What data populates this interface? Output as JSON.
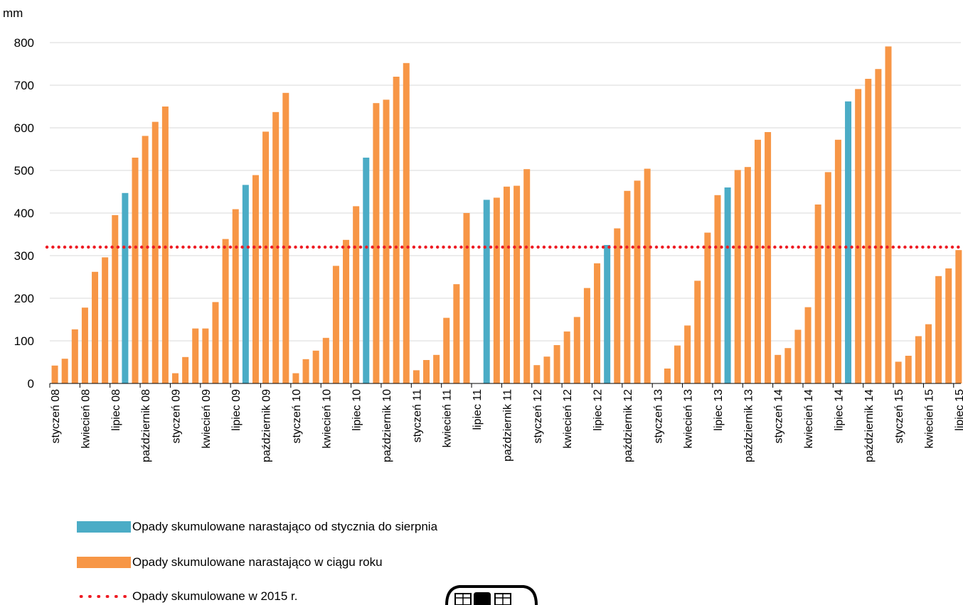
{
  "chart_data": {
    "type": "bar",
    "y_unit": "mm",
    "ylim": [
      0,
      800
    ],
    "y_ticks": [
      0,
      100,
      200,
      300,
      400,
      500,
      600,
      700,
      800
    ],
    "grid": true,
    "legend_position": "bottom-left",
    "x_tick_labels": [
      {
        "index": 0,
        "label": "styczeń 08"
      },
      {
        "index": 3,
        "label": "kwiecień 08"
      },
      {
        "index": 6,
        "label": "lipiec 08"
      },
      {
        "index": 9,
        "label": "październik 08"
      },
      {
        "index": 12,
        "label": "styczeń 09"
      },
      {
        "index": 15,
        "label": "kwiecień 09"
      },
      {
        "index": 18,
        "label": "lipiec 09"
      },
      {
        "index": 21,
        "label": "październik 09"
      },
      {
        "index": 24,
        "label": "styczeń 10"
      },
      {
        "index": 27,
        "label": "kwiecień 10"
      },
      {
        "index": 30,
        "label": "lipiec 10"
      },
      {
        "index": 33,
        "label": "październik 10"
      },
      {
        "index": 36,
        "label": "styczeń 11"
      },
      {
        "index": 39,
        "label": "kwiecień 11"
      },
      {
        "index": 42,
        "label": "lipiec 11"
      },
      {
        "index": 45,
        "label": "październik 11"
      },
      {
        "index": 48,
        "label": "styczeń 12"
      },
      {
        "index": 51,
        "label": "kwiecień 12"
      },
      {
        "index": 54,
        "label": "lipiec 12"
      },
      {
        "index": 57,
        "label": "październik 12"
      },
      {
        "index": 60,
        "label": "styczeń 13"
      },
      {
        "index": 63,
        "label": "kwiecień 13"
      },
      {
        "index": 66,
        "label": "lipiec 13"
      },
      {
        "index": 69,
        "label": "październik 13"
      },
      {
        "index": 72,
        "label": "styczeń 14"
      },
      {
        "index": 75,
        "label": "kwiecień 14"
      },
      {
        "index": 78,
        "label": "lipiec 14"
      },
      {
        "index": 81,
        "label": "październik 14"
      },
      {
        "index": 84,
        "label": "styczeń 15"
      },
      {
        "index": 87,
        "label": "kwiecień 15"
      },
      {
        "index": 90,
        "label": "lipiec 15"
      }
    ],
    "series": [
      {
        "name": "Opady skumulowane narastająco od stycznia do sierpnia",
        "color": "#4bacc6",
        "kind": "bar",
        "points": [
          {
            "index": 7,
            "value": 447
          },
          {
            "index": 19,
            "value": 466
          },
          {
            "index": 31,
            "value": 530
          },
          {
            "index": 43,
            "value": 431
          },
          {
            "index": 55,
            "value": 325
          },
          {
            "index": 67,
            "value": 460
          },
          {
            "index": 79,
            "value": 662
          }
        ]
      },
      {
        "name": "Opady skumulowane narastająco w ciągu roku",
        "color": "#f79646",
        "kind": "bar",
        "values": [
          42,
          58,
          127,
          178,
          262,
          296,
          395,
          null,
          530,
          581,
          614,
          650,
          24,
          62,
          129,
          129,
          191,
          339,
          409,
          null,
          489,
          591,
          637,
          682,
          24,
          57,
          77,
          107,
          276,
          337,
          416,
          null,
          658,
          666,
          720,
          752,
          31,
          55,
          67,
          154,
          233,
          400,
          null,
          null,
          436,
          462,
          464,
          503,
          43,
          63,
          90,
          122,
          156,
          224,
          282,
          null,
          364,
          452,
          476,
          504,
          0,
          35,
          89,
          136,
          241,
          354,
          442,
          null,
          501,
          508,
          572,
          590,
          67,
          83,
          126,
          179,
          420,
          496,
          572,
          null,
          691,
          715,
          738,
          791,
          51,
          65,
          111,
          139,
          252,
          270,
          313
        ]
      },
      {
        "name": "Opady skumulowane w 2015 r.",
        "color": "#ee1c24",
        "kind": "reference-line",
        "value": 320
      }
    ]
  }
}
